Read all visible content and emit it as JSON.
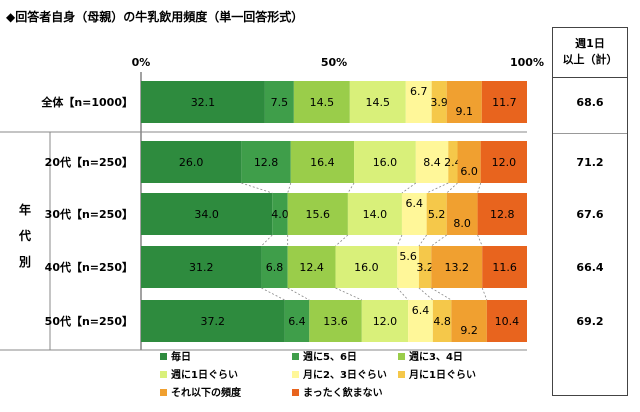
{
  "title": "◆回答者自身（母親）の牛乳飲用頻度（単一回答形式）",
  "side_header_line1": "週1日",
  "side_header_line2": "以上（計）",
  "group_label": "年代別",
  "chart_data": {
    "type": "bar",
    "orientation": "horizontal",
    "stacked": true,
    "xlim": [
      0,
      100
    ],
    "x_ticks": [
      "0%",
      "50%",
      "100%"
    ],
    "categories": [
      "全体【n=1000】",
      "20代【n=250】",
      "30代【n=250】",
      "40代【n=250】",
      "50代【n=250】"
    ],
    "series": [
      {
        "name": "毎日",
        "color": "#2e8b3e",
        "values": [
          32.1,
          26.0,
          34.0,
          31.2,
          37.2
        ]
      },
      {
        "name": "週に5、6日",
        "color": "#3f9e4a",
        "values": [
          7.5,
          12.8,
          4.0,
          6.8,
          6.4
        ]
      },
      {
        "name": "週に3、4日",
        "color": "#9acd4a",
        "values": [
          14.5,
          16.4,
          15.6,
          12.4,
          13.6
        ]
      },
      {
        "name": "週に1日ぐらい",
        "color": "#d9f07a",
        "values": [
          14.5,
          16.0,
          14.0,
          16.0,
          12.0
        ]
      },
      {
        "name": "月に2、3日ぐらい",
        "color": "#fff799",
        "values": [
          6.7,
          8.4,
          6.4,
          5.6,
          6.4
        ]
      },
      {
        "name": "月に1日ぐらい",
        "color": "#f5c84a",
        "values": [
          3.9,
          2.4,
          5.2,
          3.2,
          4.8
        ]
      },
      {
        "name": "それ以下の頻度",
        "color": "#f0a030",
        "values": [
          9.1,
          6.0,
          8.0,
          13.2,
          9.2
        ]
      },
      {
        "name": "まったく飲まない",
        "color": "#e8641e",
        "values": [
          11.7,
          12.0,
          12.8,
          11.6,
          10.4
        ]
      }
    ],
    "weekly_or_more_total": [
      "68.6",
      "71.2",
      "67.6",
      "66.4",
      "69.2"
    ]
  }
}
